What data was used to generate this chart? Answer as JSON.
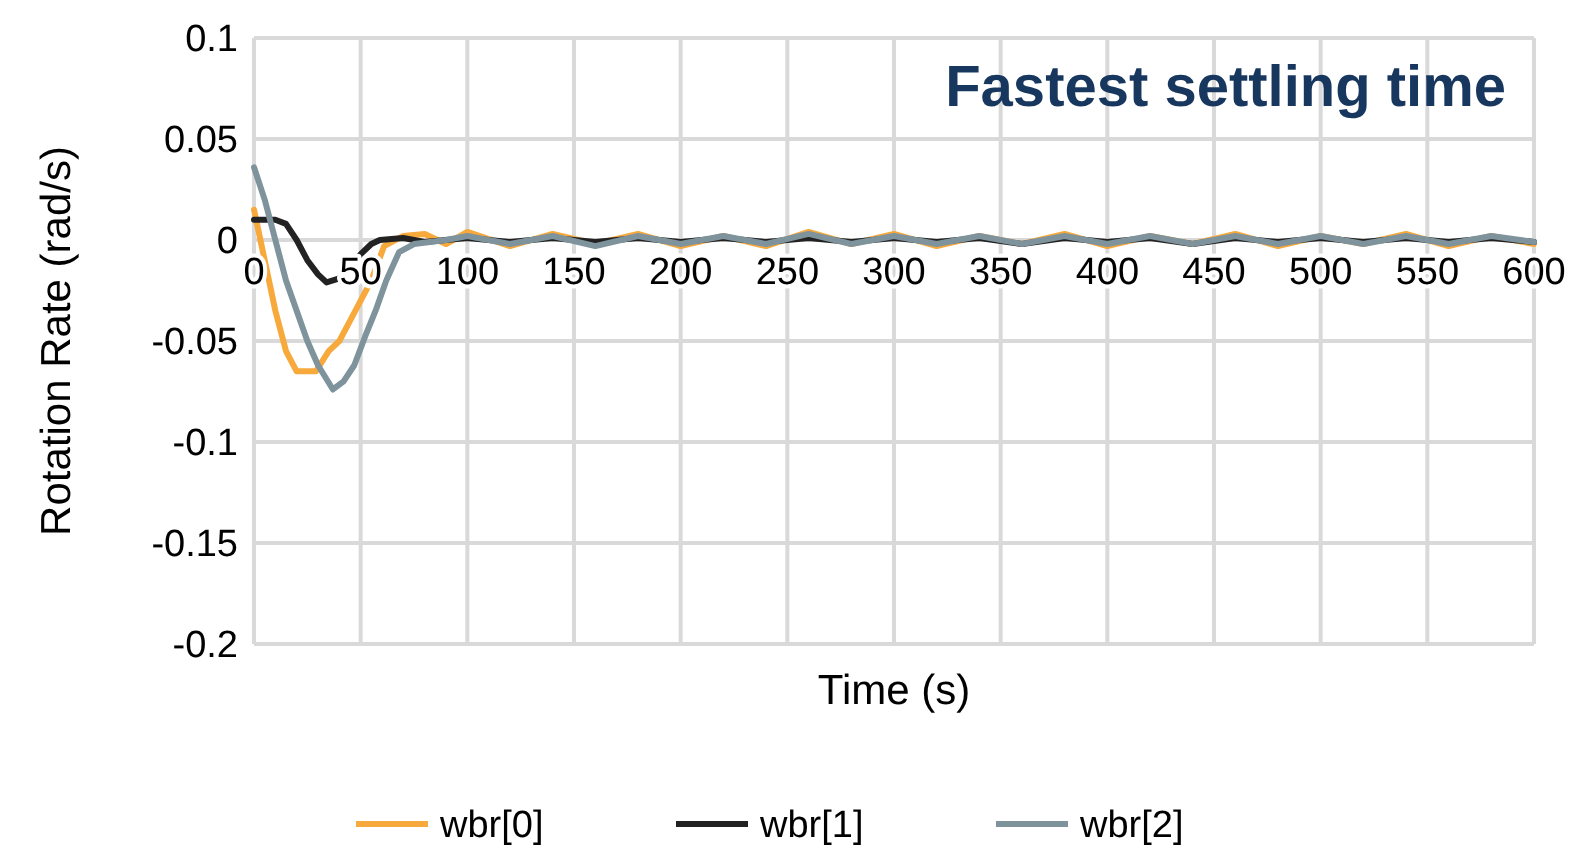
{
  "chart_data": {
    "type": "line",
    "title": "Fastest settling time",
    "xlabel": "Time (s)",
    "ylabel": "Rotation Rate (rad/s)",
    "xlim": [
      0,
      600
    ],
    "xticks": [
      0,
      50,
      100,
      150,
      200,
      250,
      300,
      350,
      400,
      450,
      500,
      550,
      600
    ],
    "ylim": [
      -0.2,
      0.1
    ],
    "yticks": [
      -0.2,
      -0.15,
      -0.1,
      -0.05,
      0,
      0.05,
      0.1
    ],
    "grid": true,
    "legend": "bottom",
    "line_style": "solid",
    "marker": "none",
    "series": [
      {
        "name": "wbr[0]",
        "color": "#f7a93b",
        "x": [
          0,
          5,
          10,
          15,
          20,
          29,
          35,
          40,
          45,
          50,
          55,
          61,
          70,
          80,
          90,
          100,
          120,
          140,
          160,
          180,
          200,
          220,
          240,
          260,
          280,
          300,
          320,
          340,
          360,
          380,
          400,
          420,
          440,
          460,
          480,
          500,
          520,
          540,
          560,
          580,
          600
        ],
        "values": [
          0.015,
          -0.01,
          -0.035,
          -0.055,
          -0.065,
          -0.065,
          -0.055,
          -0.05,
          -0.04,
          -0.03,
          -0.02,
          -0.003,
          0.002,
          0.003,
          -0.002,
          0.004,
          -0.003,
          0.003,
          -0.002,
          0.003,
          -0.003,
          0.002,
          -0.003,
          0.004,
          -0.002,
          0.003,
          -0.003,
          0.002,
          -0.002,
          0.003,
          -0.003,
          0.002,
          -0.002,
          0.003,
          -0.003,
          0.002,
          -0.002,
          0.003,
          -0.003,
          0.002,
          -0.002
        ]
      },
      {
        "name": "wbr[1]",
        "color": "#222222",
        "x": [
          0,
          5,
          10,
          15,
          20,
          25,
          30,
          34,
          40,
          45,
          50,
          55,
          59,
          70,
          80,
          100,
          120,
          140,
          160,
          180,
          200,
          220,
          240,
          260,
          280,
          300,
          320,
          340,
          360,
          380,
          400,
          420,
          440,
          460,
          480,
          500,
          520,
          540,
          560,
          580,
          600
        ],
        "values": [
          0.01,
          0.01,
          0.01,
          0.008,
          0.0,
          -0.01,
          -0.017,
          -0.021,
          -0.019,
          -0.013,
          -0.007,
          -0.002,
          0.0,
          0.001,
          -0.001,
          0.001,
          -0.001,
          0.001,
          -0.001,
          0.001,
          -0.001,
          0.001,
          -0.001,
          0.001,
          -0.001,
          0.001,
          -0.001,
          0.001,
          -0.002,
          0.001,
          -0.001,
          0.001,
          -0.002,
          0.001,
          -0.001,
          0.001,
          -0.001,
          0.001,
          -0.001,
          0.001,
          -0.001
        ]
      },
      {
        "name": "wbr[2]",
        "color": "#7f939c",
        "x": [
          0,
          5,
          10,
          15,
          20,
          25,
          30,
          37,
          42,
          47,
          52,
          57,
          62,
          68,
          75,
          90,
          100,
          120,
          140,
          160,
          180,
          200,
          220,
          240,
          260,
          280,
          300,
          320,
          340,
          360,
          380,
          400,
          420,
          440,
          460,
          480,
          500,
          520,
          540,
          560,
          580,
          600
        ],
        "values": [
          0.036,
          0.02,
          0.0,
          -0.02,
          -0.035,
          -0.05,
          -0.062,
          -0.074,
          -0.07,
          -0.062,
          -0.048,
          -0.035,
          -0.02,
          -0.006,
          -0.002,
          0.0,
          0.002,
          -0.002,
          0.002,
          -0.003,
          0.002,
          -0.002,
          0.002,
          -0.002,
          0.003,
          -0.002,
          0.002,
          -0.002,
          0.002,
          -0.002,
          0.002,
          -0.002,
          0.002,
          -0.002,
          0.002,
          -0.002,
          0.002,
          -0.002,
          0.002,
          -0.002,
          0.002,
          -0.001
        ]
      }
    ]
  }
}
